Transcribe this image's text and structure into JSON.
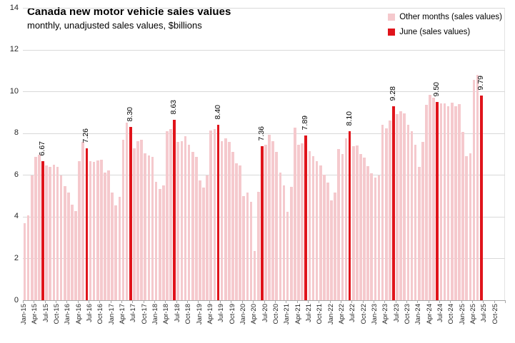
{
  "chart_data": {
    "type": "bar",
    "title": "Canada new motor vehicle sales values",
    "subtitle": "monthly, unadjusted sales values, $billions",
    "legend_position": "top-right",
    "grid": "horizontal",
    "ylim": [
      0,
      14
    ],
    "y_ticks": [
      "0",
      "2",
      "4",
      "6",
      "8",
      "10",
      "12",
      "14"
    ],
    "x_tick_interval": 3,
    "series": [
      {
        "name": "Other months (sales values)",
        "color": "#f5c9cd"
      },
      {
        "name": "June (sales values)",
        "color": "#e0141b"
      }
    ],
    "months": [
      "Jan-15",
      "Feb-15",
      "Mar-15",
      "Apr-15",
      "May-15",
      "Jun-15",
      "Jul-15",
      "Aug-15",
      "Sep-15",
      "Oct-15",
      "Nov-15",
      "Dec-15",
      "Jan-16",
      "Feb-16",
      "Mar-16",
      "Apr-16",
      "May-16",
      "Jun-16",
      "Jul-16",
      "Aug-16",
      "Sep-16",
      "Oct-16",
      "Nov-16",
      "Dec-16",
      "Jan-17",
      "Feb-17",
      "Mar-17",
      "Apr-17",
      "May-17",
      "Jun-17",
      "Jul-17",
      "Aug-17",
      "Sep-17",
      "Oct-17",
      "Nov-17",
      "Dec-17",
      "Jan-18",
      "Feb-18",
      "Mar-18",
      "Apr-18",
      "May-18",
      "Jun-18",
      "Jul-18",
      "Aug-18",
      "Sep-18",
      "Oct-18",
      "Nov-18",
      "Dec-18",
      "Jan-19",
      "Feb-19",
      "Mar-19",
      "Apr-19",
      "May-19",
      "Jun-19",
      "Jul-19",
      "Aug-19",
      "Sep-19",
      "Oct-19",
      "Nov-19",
      "Dec-19",
      "Jan-20",
      "Feb-20",
      "Mar-20",
      "Apr-20",
      "May-20",
      "Jun-20",
      "Jul-20",
      "Aug-20",
      "Sep-20",
      "Oct-20",
      "Nov-20",
      "Dec-20",
      "Jan-21",
      "Feb-21",
      "Mar-21",
      "Apr-21",
      "May-21",
      "Jun-21",
      "Jul-21",
      "Aug-21",
      "Sep-21",
      "Oct-21",
      "Nov-21",
      "Dec-21",
      "Jan-22",
      "Feb-22",
      "Mar-22",
      "Apr-22",
      "May-22",
      "Jun-22",
      "Jul-22",
      "Aug-22",
      "Sep-22",
      "Oct-22",
      "Nov-22",
      "Dec-22",
      "Jan-23",
      "Feb-23",
      "Mar-23",
      "Apr-23",
      "May-23",
      "Jun-23",
      "Jul-23",
      "Aug-23",
      "Sep-23",
      "Oct-23",
      "Nov-23",
      "Dec-23",
      "Jan-24",
      "Feb-24",
      "Mar-24",
      "Apr-24",
      "May-24",
      "Jun-24",
      "Jul-24",
      "Aug-24",
      "Sep-24",
      "Oct-24",
      "Nov-24",
      "Dec-24",
      "Jan-25",
      "Feb-25",
      "Mar-25",
      "Apr-25",
      "May-25",
      "Jun-25",
      "Jul-25",
      "Aug-25",
      "Sep-25",
      "Oct-25"
    ],
    "values": [
      3.7,
      4.08,
      5.97,
      6.88,
      6.97,
      6.67,
      6.45,
      6.37,
      6.5,
      6.37,
      5.97,
      5.47,
      5.17,
      4.59,
      4.27,
      6.67,
      7.59,
      7.26,
      6.67,
      6.62,
      6.71,
      6.73,
      6.1,
      6.22,
      5.17,
      4.54,
      4.96,
      7.68,
      8.5,
      8.3,
      7.28,
      7.62,
      7.68,
      7.05,
      6.94,
      6.88,
      5.68,
      5.34,
      5.51,
      8.08,
      8.19,
      8.63,
      7.57,
      7.63,
      7.85,
      7.45,
      7.11,
      6.88,
      5.74,
      5.39,
      5.97,
      8.14,
      8.19,
      8.4,
      7.63,
      7.74,
      7.57,
      7.11,
      6.54,
      6.45,
      4.99,
      5.14,
      4.71,
      2.37,
      5.19,
      7.36,
      7.45,
      7.93,
      7.62,
      7.11,
      6.1,
      5.51,
      4.25,
      5.42,
      8.25,
      7.45,
      7.5,
      7.89,
      7.15,
      6.9,
      6.67,
      6.45,
      6.02,
      5.65,
      4.77,
      5.15,
      7.25,
      7.0,
      7.74,
      8.1,
      7.39,
      7.42,
      6.99,
      6.82,
      6.42,
      6.08,
      5.86,
      5.99,
      8.41,
      8.24,
      8.6,
      9.28,
      8.9,
      9.05,
      8.95,
      8.4,
      8.11,
      7.46,
      6.38,
      7.58,
      9.37,
      9.83,
      9.71,
      9.5,
      9.43,
      9.43,
      9.3,
      9.45,
      9.3,
      9.4,
      8.05,
      6.9,
      7.05,
      10.55,
      10.78,
      9.79,
      null,
      null,
      null,
      null
    ],
    "june_value_labels": [
      "6.67",
      "7.26",
      "8.30",
      "8.63",
      "8.40",
      "7.36",
      "7.89",
      "8.10",
      "9.28",
      "9.50",
      "9.79"
    ]
  }
}
